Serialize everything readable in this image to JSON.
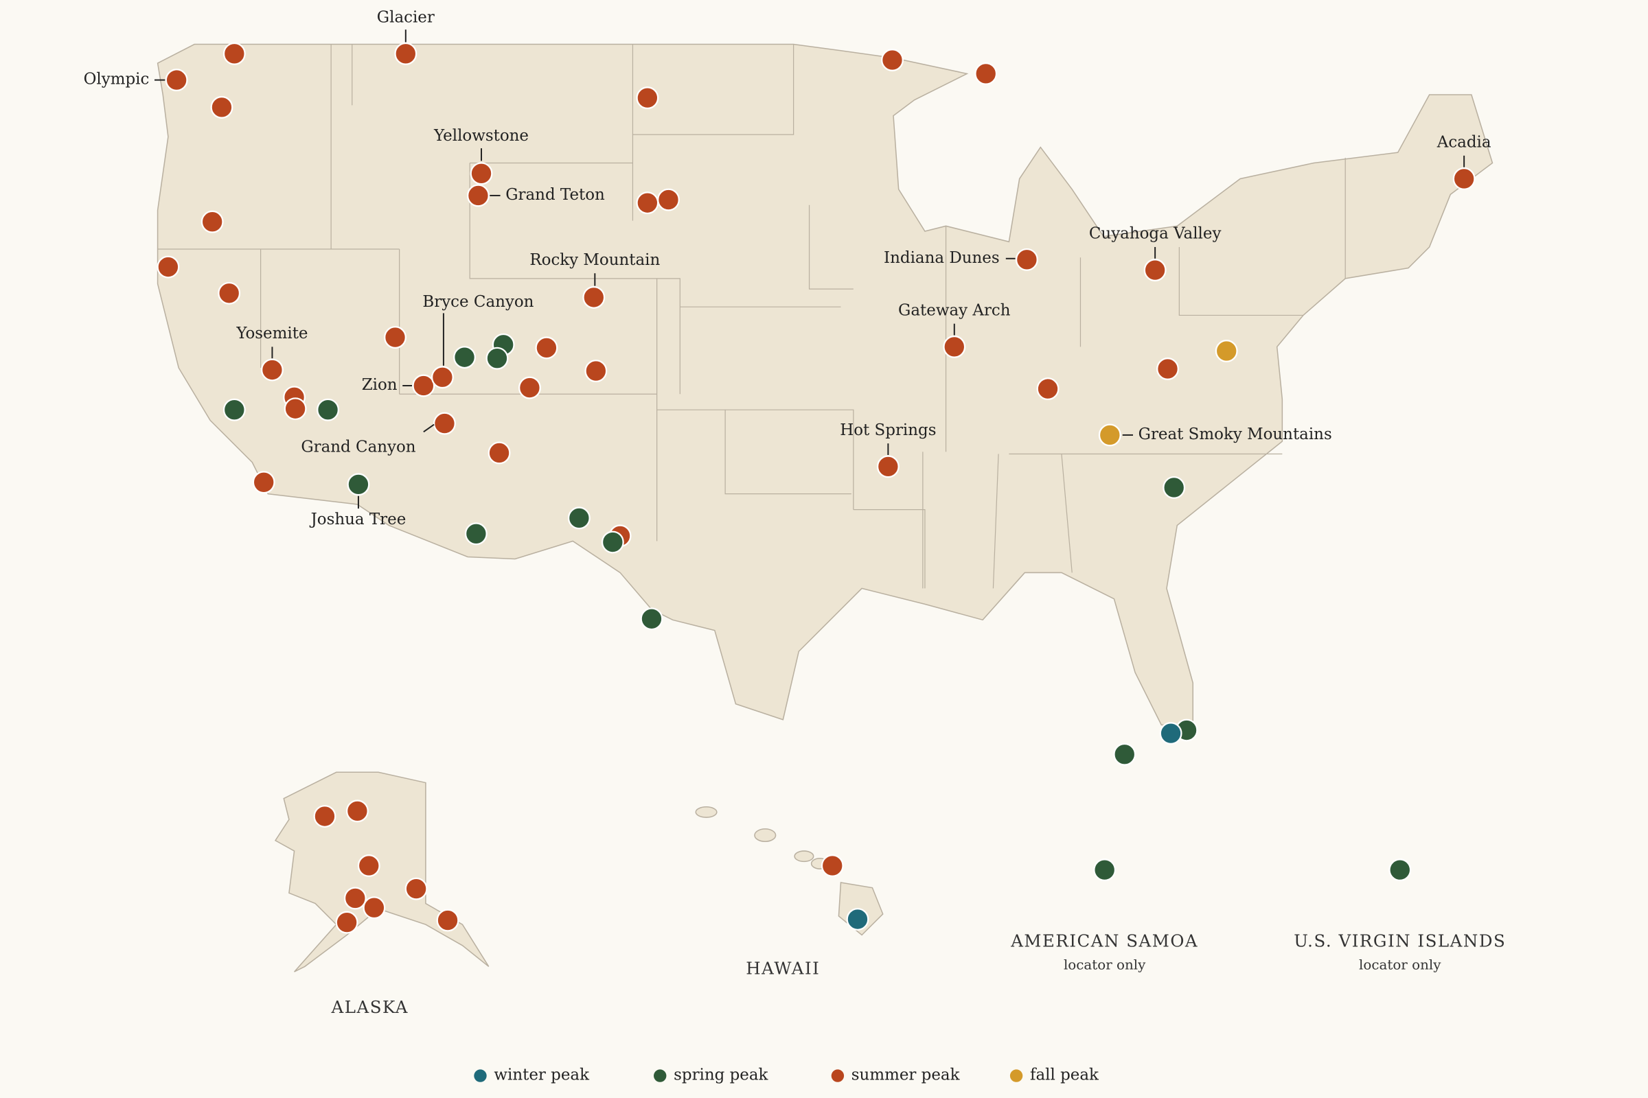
{
  "map": {
    "labels": [
      "Glacier",
      "Olympic",
      "Yellowstone",
      "Grand Teton",
      "Rocky Mountain",
      "Bryce Canyon",
      "Yosemite",
      "Zion",
      "Grand Canyon",
      "Joshua Tree",
      "Indiana Dunes",
      "Cuyahoga Valley",
      "Acadia",
      "Gateway Arch",
      "Hot Springs",
      "Great Smoky Mountains"
    ],
    "regions": [
      {
        "name": "ALASKA"
      },
      {
        "name": "HAWAII"
      },
      {
        "name": "AMERICAN SAMOA",
        "note": "locator only"
      },
      {
        "name": "U.S. VIRGIN ISLANDS",
        "note": "locator only"
      }
    ],
    "legend": [
      {
        "label": "winter peak",
        "color": "#1f6a7a"
      },
      {
        "label": "spring peak",
        "color": "#2f5a38"
      },
      {
        "label": "summer peak",
        "color": "#b9461e"
      },
      {
        "label": "fall peak",
        "color": "#d49a2a"
      }
    ]
  }
}
